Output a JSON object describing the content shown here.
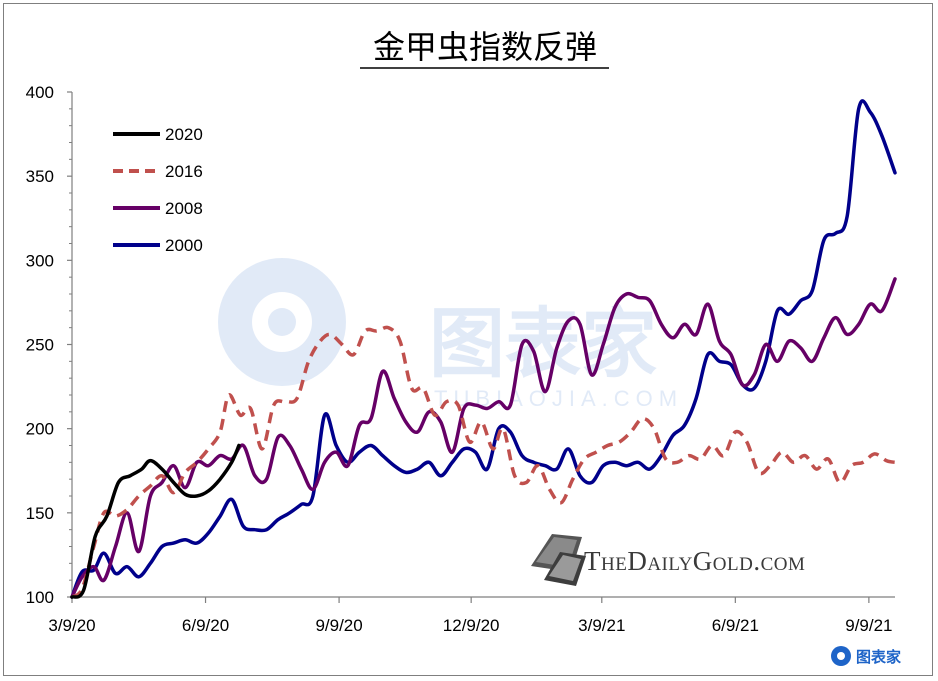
{
  "chart_data": {
    "type": "line",
    "title": "金甲虫指数反弹",
    "xlabel": "",
    "ylabel": "",
    "ylim": [
      100,
      400
    ],
    "yticks": [
      100,
      150,
      200,
      250,
      300,
      350,
      400
    ],
    "x_tick_labels": [
      "3/9/20",
      "6/9/20",
      "9/9/20",
      "12/9/20",
      "3/9/21",
      "6/9/21",
      "9/9/21"
    ],
    "x_tick_positions": [
      "2020-03-09",
      "2020-06-09",
      "2020-09-09",
      "2020-12-09",
      "2021-03-09",
      "2021-06-09",
      "2021-09-09"
    ],
    "xlim": [
      "2020-03-09",
      "2021-09-27"
    ],
    "grid": false,
    "legend_position": "top-left",
    "series": [
      {
        "name": "2020",
        "color": "#000000",
        "dash": "solid",
        "points": [
          [
            "2020-03-09",
            100
          ],
          [
            "2020-03-17",
            104
          ],
          [
            "2020-03-25",
            136
          ],
          [
            "2020-04-02",
            148
          ],
          [
            "2020-04-10",
            168
          ],
          [
            "2020-04-18",
            172
          ],
          [
            "2020-04-26",
            176
          ],
          [
            "2020-05-02",
            181
          ],
          [
            "2020-05-10",
            176
          ],
          [
            "2020-05-18",
            168
          ],
          [
            "2020-05-26",
            161
          ],
          [
            "2020-06-03",
            160
          ],
          [
            "2020-06-11",
            163
          ],
          [
            "2020-06-19",
            170
          ],
          [
            "2020-06-27",
            180
          ],
          [
            "2020-07-02",
            190
          ]
        ]
      },
      {
        "name": "2016",
        "color": "#c0504d",
        "dash": "dashed",
        "points": [
          [
            "2020-03-09",
            100
          ],
          [
            "2020-03-16",
            105
          ],
          [
            "2020-03-24",
            130
          ],
          [
            "2020-03-31",
            150
          ],
          [
            "2020-04-08",
            148
          ],
          [
            "2020-04-16",
            152
          ],
          [
            "2020-04-24",
            160
          ],
          [
            "2020-05-02",
            166
          ],
          [
            "2020-05-10",
            172
          ],
          [
            "2020-05-18",
            162
          ],
          [
            "2020-05-26",
            174
          ],
          [
            "2020-06-03",
            180
          ],
          [
            "2020-06-11",
            188
          ],
          [
            "2020-06-19",
            198
          ],
          [
            "2020-06-25",
            220
          ],
          [
            "2020-07-03",
            208
          ],
          [
            "2020-07-10",
            212
          ],
          [
            "2020-07-18",
            188
          ],
          [
            "2020-07-26",
            214
          ],
          [
            "2020-08-03",
            216
          ],
          [
            "2020-08-11",
            218
          ],
          [
            "2020-08-19",
            240
          ],
          [
            "2020-08-27",
            252
          ],
          [
            "2020-09-03",
            256
          ],
          [
            "2020-09-11",
            250
          ],
          [
            "2020-09-19",
            244
          ],
          [
            "2020-09-27",
            258
          ],
          [
            "2020-10-05",
            258
          ],
          [
            "2020-10-13",
            260
          ],
          [
            "2020-10-21",
            252
          ],
          [
            "2020-10-29",
            224
          ],
          [
            "2020-11-06",
            224
          ],
          [
            "2020-11-14",
            208
          ],
          [
            "2020-11-22",
            216
          ],
          [
            "2020-11-30",
            214
          ],
          [
            "2020-12-08",
            192
          ],
          [
            "2020-12-16",
            204
          ],
          [
            "2020-12-24",
            188
          ],
          [
            "2020-12-31",
            200
          ],
          [
            "2021-01-08",
            172
          ],
          [
            "2021-01-16",
            168
          ],
          [
            "2021-01-24",
            178
          ],
          [
            "2021-02-01",
            164
          ],
          [
            "2021-02-09",
            156
          ],
          [
            "2021-02-17",
            170
          ],
          [
            "2021-02-25",
            182
          ],
          [
            "2021-03-05",
            186
          ],
          [
            "2021-03-13",
            190
          ],
          [
            "2021-03-21",
            192
          ],
          [
            "2021-03-29",
            198
          ],
          [
            "2021-04-06",
            206
          ],
          [
            "2021-04-14",
            200
          ],
          [
            "2021-04-22",
            182
          ],
          [
            "2021-04-30",
            180
          ],
          [
            "2021-05-08",
            184
          ],
          [
            "2021-05-16",
            182
          ],
          [
            "2021-05-24",
            190
          ],
          [
            "2021-06-01",
            184
          ],
          [
            "2021-06-09",
            198
          ],
          [
            "2021-06-17",
            192
          ],
          [
            "2021-06-25",
            174
          ],
          [
            "2021-07-03",
            178
          ],
          [
            "2021-07-11",
            186
          ],
          [
            "2021-07-19",
            180
          ],
          [
            "2021-07-27",
            184
          ],
          [
            "2021-08-04",
            176
          ],
          [
            "2021-08-12",
            182
          ],
          [
            "2021-08-20",
            168
          ],
          [
            "2021-08-28",
            178
          ],
          [
            "2021-09-05",
            180
          ],
          [
            "2021-09-13",
            185
          ],
          [
            "2021-09-21",
            181
          ],
          [
            "2021-09-27",
            180
          ]
        ]
      },
      {
        "name": "2008",
        "color": "#660066",
        "dash": "solid",
        "points": [
          [
            "2020-03-09",
            100
          ],
          [
            "2020-03-16",
            112
          ],
          [
            "2020-03-24",
            118
          ],
          [
            "2020-03-31",
            110
          ],
          [
            "2020-04-08",
            130
          ],
          [
            "2020-04-16",
            150
          ],
          [
            "2020-04-24",
            127
          ],
          [
            "2020-05-02",
            160
          ],
          [
            "2020-05-10",
            168
          ],
          [
            "2020-05-18",
            178
          ],
          [
            "2020-05-26",
            165
          ],
          [
            "2020-06-03",
            180
          ],
          [
            "2020-06-11",
            178
          ],
          [
            "2020-06-19",
            184
          ],
          [
            "2020-06-27",
            182
          ],
          [
            "2020-07-05",
            190
          ],
          [
            "2020-07-13",
            172
          ],
          [
            "2020-07-21",
            170
          ],
          [
            "2020-07-29",
            195
          ],
          [
            "2020-08-06",
            190
          ],
          [
            "2020-08-14",
            176
          ],
          [
            "2020-08-22",
            164
          ],
          [
            "2020-08-30",
            180
          ],
          [
            "2020-09-07",
            186
          ],
          [
            "2020-09-15",
            178
          ],
          [
            "2020-09-23",
            202
          ],
          [
            "2020-10-01",
            206
          ],
          [
            "2020-10-09",
            234
          ],
          [
            "2020-10-17",
            218
          ],
          [
            "2020-10-25",
            204
          ],
          [
            "2020-11-02",
            198
          ],
          [
            "2020-11-10",
            210
          ],
          [
            "2020-11-18",
            204
          ],
          [
            "2020-11-26",
            186
          ],
          [
            "2020-12-04",
            212
          ],
          [
            "2020-12-12",
            214
          ],
          [
            "2020-12-20",
            212
          ],
          [
            "2020-12-28",
            216
          ],
          [
            "2021-01-05",
            214
          ],
          [
            "2021-01-13",
            250
          ],
          [
            "2021-01-21",
            246
          ],
          [
            "2021-01-29",
            222
          ],
          [
            "2021-02-06",
            248
          ],
          [
            "2021-02-14",
            264
          ],
          [
            "2021-02-22",
            262
          ],
          [
            "2021-03-02",
            232
          ],
          [
            "2021-03-10",
            250
          ],
          [
            "2021-03-18",
            272
          ],
          [
            "2021-03-26",
            280
          ],
          [
            "2021-04-03",
            278
          ],
          [
            "2021-04-11",
            276
          ],
          [
            "2021-04-19",
            262
          ],
          [
            "2021-04-27",
            254
          ],
          [
            "2021-05-05",
            262
          ],
          [
            "2021-05-13",
            256
          ],
          [
            "2021-05-21",
            274
          ],
          [
            "2021-05-29",
            252
          ],
          [
            "2021-06-06",
            244
          ],
          [
            "2021-06-14",
            226
          ],
          [
            "2021-06-22",
            232
          ],
          [
            "2021-06-30",
            250
          ],
          [
            "2021-07-08",
            240
          ],
          [
            "2021-07-16",
            252
          ],
          [
            "2021-07-24",
            248
          ],
          [
            "2021-08-01",
            240
          ],
          [
            "2021-08-09",
            254
          ],
          [
            "2021-08-17",
            266
          ],
          [
            "2021-08-25",
            256
          ],
          [
            "2021-09-02",
            262
          ],
          [
            "2021-09-10",
            274
          ],
          [
            "2021-09-18",
            270
          ],
          [
            "2021-09-27",
            289
          ]
        ]
      },
      {
        "name": "2000",
        "color": "#00008b",
        "dash": "solid",
        "points": [
          [
            "2020-03-09",
            100
          ],
          [
            "2020-03-16",
            115
          ],
          [
            "2020-03-24",
            116
          ],
          [
            "2020-03-31",
            126
          ],
          [
            "2020-04-08",
            114
          ],
          [
            "2020-04-16",
            118
          ],
          [
            "2020-04-24",
            112
          ],
          [
            "2020-05-02",
            120
          ],
          [
            "2020-05-10",
            130
          ],
          [
            "2020-05-18",
            132
          ],
          [
            "2020-05-26",
            134
          ],
          [
            "2020-06-03",
            132
          ],
          [
            "2020-06-11",
            138
          ],
          [
            "2020-06-19",
            148
          ],
          [
            "2020-06-27",
            158
          ],
          [
            "2020-07-05",
            142
          ],
          [
            "2020-07-13",
            140
          ],
          [
            "2020-07-21",
            140
          ],
          [
            "2020-07-29",
            146
          ],
          [
            "2020-08-06",
            150
          ],
          [
            "2020-08-14",
            155
          ],
          [
            "2020-08-22",
            160
          ],
          [
            "2020-08-30",
            208
          ],
          [
            "2020-09-07",
            190
          ],
          [
            "2020-09-15",
            180
          ],
          [
            "2020-09-23",
            186
          ],
          [
            "2020-10-01",
            190
          ],
          [
            "2020-10-09",
            184
          ],
          [
            "2020-10-17",
            178
          ],
          [
            "2020-10-25",
            174
          ],
          [
            "2020-11-02",
            176
          ],
          [
            "2020-11-10",
            180
          ],
          [
            "2020-11-18",
            172
          ],
          [
            "2020-11-26",
            180
          ],
          [
            "2020-12-04",
            188
          ],
          [
            "2020-12-12",
            186
          ],
          [
            "2020-12-20",
            176
          ],
          [
            "2020-12-28",
            200
          ],
          [
            "2021-01-05",
            198
          ],
          [
            "2021-01-13",
            184
          ],
          [
            "2021-01-21",
            180
          ],
          [
            "2021-01-29",
            178
          ],
          [
            "2021-02-06",
            176
          ],
          [
            "2021-02-14",
            188
          ],
          [
            "2021-02-22",
            172
          ],
          [
            "2021-03-02",
            168
          ],
          [
            "2021-03-10",
            178
          ],
          [
            "2021-03-18",
            180
          ],
          [
            "2021-03-26",
            178
          ],
          [
            "2021-04-03",
            180
          ],
          [
            "2021-04-11",
            176
          ],
          [
            "2021-04-19",
            184
          ],
          [
            "2021-04-27",
            196
          ],
          [
            "2021-05-05",
            202
          ],
          [
            "2021-05-13",
            218
          ],
          [
            "2021-05-21",
            244
          ],
          [
            "2021-05-29",
            240
          ],
          [
            "2021-06-06",
            238
          ],
          [
            "2021-06-14",
            226
          ],
          [
            "2021-06-22",
            224
          ],
          [
            "2021-06-30",
            240
          ],
          [
            "2021-07-08",
            270
          ],
          [
            "2021-07-16",
            268
          ],
          [
            "2021-07-24",
            276
          ],
          [
            "2021-08-01",
            282
          ],
          [
            "2021-08-09",
            312
          ],
          [
            "2021-08-17",
            316
          ],
          [
            "2021-08-25",
            326
          ],
          [
            "2021-09-02",
            390
          ],
          [
            "2021-09-10",
            388
          ],
          [
            "2021-09-18",
            374
          ],
          [
            "2021-09-27",
            352
          ]
        ]
      }
    ]
  },
  "watermark": {
    "brand_text": "TheDailyGold.com",
    "logo_text": "图表家",
    "logo_subtext": "TUBIAOJIA.COM",
    "corner_logo_text": "图表家"
  }
}
